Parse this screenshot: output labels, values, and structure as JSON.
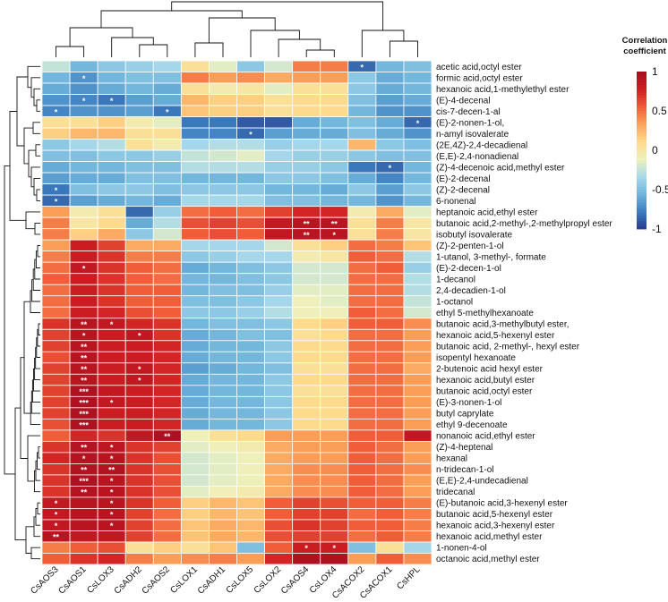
{
  "chart_data": {
    "type": "heatmap",
    "legend": {
      "title_line1": "Correlation",
      "title_line2": "coefficient",
      "ticks": [
        "1",
        "0.5",
        "0",
        "-0.5",
        "-1"
      ],
      "tick_values": [
        1,
        0.5,
        0,
        -0.5,
        -1
      ],
      "range": [
        -1,
        1
      ],
      "colors": [
        "#2b3a8c",
        "#3d7fc0",
        "#72b6dd",
        "#a9d9ea",
        "#eef1bb",
        "#fed98a",
        "#fba25a",
        "#ef5b38",
        "#cf1d22",
        "#a50f21"
      ],
      "placement": "right"
    },
    "columns": [
      "CsAOS3",
      "CsAOS1",
      "CsLOX3",
      "CsADH2",
      "CsAOS2",
      "CsLOX1",
      "CsADH1",
      "CsLOX5",
      "CsLOX2",
      "CsAOS4",
      "CsLOX4",
      "CsACOX2",
      "CsACOX1",
      "CsHPL"
    ],
    "rows": [
      "acetic acid,octyl ester",
      "formic acid,octyl ester",
      "hexanoic acid,1-methylethyl ester",
      "(E)-4-decenal",
      "cis-7-decen-1-al",
      "(E)-2-nonen-1-ol,",
      "n-amyl isovalerate",
      "(2E,4Z)-2,4-decadienal",
      "(E,E)-2,4-nonadienal",
      "(Z)-4-decenoic acid,methyl ester",
      "(E)-2-decenal",
      "(Z)-2-decenal",
      "6-nonenal",
      "heptanoic acid,ethyl ester",
      "butanoic acid,2-methyl-,2-methylpropyl ester",
      "isobutyl isovalerate",
      "(Z)-2-penten-1-ol",
      "1-utanol, 3-methyl-, formate",
      "(E)-2-decen-1-ol",
      "1-decanol",
      "2,4-decadien-1-ol",
      "1-octanol",
      "ethyl 5-methylhexanoate",
      "butanoic acid,3-methylbutyl ester,",
      "hexanoic acid,5-hexenyl ester",
      "butanoic acid, 2-methyl-, hexyl ester",
      "isopentyl hexanoate",
      "2-butenoic acid hexyl ester",
      "hexanoic acid,butyl ester",
      "butanoic acid,octyl ester",
      "(E)-3-nonen-1-ol",
      "butyl caprylate",
      "ethyl 9-decenoate",
      "nonanoic acid,ethyl ester",
      "(Z)-4-heptenal",
      "hexanal",
      "n-tridecan-1-ol",
      "(E,E)-2,4-undecadienal",
      "tridecanal",
      "(E)-butanoic acid,3-hexenyl ester",
      "butanoic acid,5-hexenyl ester",
      "hexanoic acid,3-hexenyl ester",
      "hexanoic acid,methyl ester",
      "1-nonen-4-ol",
      "octanoic acid,methyl ester"
    ],
    "values": [
      [
        -0.25,
        -0.55,
        -0.45,
        -0.4,
        -0.35,
        0.05,
        -0.15,
        -0.45,
        -0.2,
        0.45,
        0.45,
        -0.85,
        -0.55,
        -0.5
      ],
      [
        -0.55,
        -0.7,
        -0.55,
        -0.5,
        -0.5,
        0.45,
        0.35,
        0.4,
        0.3,
        0.35,
        0.35,
        -0.45,
        -0.6,
        -0.55
      ],
      [
        -0.6,
        -0.7,
        -0.6,
        -0.55,
        -0.6,
        0.05,
        -0.05,
        0.0,
        -0.15,
        0.05,
        0.05,
        -0.45,
        -0.6,
        -0.55
      ],
      [
        -0.7,
        -0.75,
        -0.8,
        -0.65,
        -0.6,
        0.25,
        0.15,
        0.15,
        0.05,
        0.1,
        0.1,
        -0.5,
        -0.65,
        -0.6
      ],
      [
        -0.75,
        -0.7,
        -0.7,
        -0.65,
        -0.8,
        0.2,
        0.15,
        0.15,
        0.05,
        0.1,
        0.1,
        -0.55,
        -0.7,
        -0.7
      ],
      [
        0.05,
        0.05,
        0.15,
        -0.05,
        -0.15,
        -0.8,
        -0.8,
        -0.9,
        -0.9,
        -0.6,
        -0.55,
        -0.5,
        -0.6,
        -0.85
      ],
      [
        0.15,
        0.25,
        0.25,
        0.05,
        0.05,
        -0.75,
        -0.75,
        -0.85,
        -0.65,
        -0.6,
        -0.6,
        -0.5,
        -0.6,
        -0.7
      ],
      [
        -0.45,
        -0.35,
        -0.3,
        0.05,
        -0.05,
        -0.35,
        -0.3,
        -0.3,
        -0.4,
        -0.35,
        -0.35,
        0.25,
        -0.45,
        -0.5
      ],
      [
        -0.5,
        -0.5,
        -0.45,
        -0.45,
        -0.4,
        -0.25,
        -0.2,
        -0.15,
        -0.35,
        -0.4,
        -0.4,
        -0.45,
        -0.5,
        -0.5
      ],
      [
        -0.6,
        -0.55,
        -0.55,
        -0.5,
        -0.5,
        -0.3,
        -0.3,
        -0.3,
        -0.4,
        -0.4,
        -0.45,
        -0.8,
        -0.85,
        -0.55
      ],
      [
        -0.65,
        -0.6,
        -0.6,
        -0.5,
        -0.5,
        -0.55,
        -0.55,
        -0.55,
        -0.45,
        -0.45,
        -0.5,
        -0.6,
        -0.75,
        -0.55
      ],
      [
        -0.8,
        -0.5,
        -0.45,
        -0.45,
        -0.5,
        -0.45,
        -0.45,
        -0.45,
        -0.55,
        -0.55,
        -0.6,
        -0.45,
        -0.65,
        -0.45
      ],
      [
        -0.85,
        -0.65,
        -0.6,
        -0.55,
        -0.6,
        -0.35,
        -0.35,
        -0.35,
        -0.5,
        -0.5,
        -0.55,
        -0.55,
        -0.7,
        -0.55
      ],
      [
        0.35,
        -0.05,
        0.05,
        -0.85,
        -0.4,
        0.5,
        0.55,
        0.5,
        0.65,
        0.75,
        0.75,
        -0.05,
        0.3,
        -0.15
      ],
      [
        0.45,
        0.0,
        0.1,
        -0.6,
        -0.3,
        0.6,
        0.65,
        0.6,
        0.85,
        0.9,
        0.9,
        0.05,
        0.45,
        0.0
      ],
      [
        0.45,
        0.15,
        0.3,
        -0.45,
        -0.2,
        0.55,
        0.6,
        0.55,
        0.85,
        0.9,
        0.9,
        0.05,
        0.45,
        0.0
      ],
      [
        0.35,
        0.8,
        0.65,
        0.3,
        0.3,
        -0.35,
        -0.35,
        -0.35,
        -0.2,
        0.05,
        0.15,
        0.5,
        0.45,
        0.2
      ],
      [
        0.45,
        0.8,
        0.7,
        0.45,
        0.45,
        -0.45,
        -0.4,
        -0.35,
        -0.35,
        -0.05,
        0.0,
        0.55,
        0.5,
        -0.3
      ],
      [
        0.5,
        0.85,
        0.7,
        0.55,
        0.5,
        -0.6,
        -0.55,
        -0.5,
        -0.45,
        -0.2,
        -0.2,
        0.5,
        0.55,
        -0.4
      ],
      [
        0.55,
        0.8,
        0.7,
        0.55,
        0.5,
        -0.55,
        -0.55,
        -0.5,
        -0.45,
        -0.2,
        -0.2,
        0.5,
        0.5,
        -0.3
      ],
      [
        0.5,
        0.8,
        0.7,
        0.55,
        0.55,
        -0.55,
        -0.5,
        -0.5,
        -0.4,
        -0.15,
        -0.15,
        0.5,
        0.5,
        -0.3
      ],
      [
        0.5,
        0.8,
        0.7,
        0.55,
        0.55,
        -0.5,
        -0.5,
        -0.45,
        -0.35,
        -0.1,
        -0.15,
        0.5,
        0.5,
        -0.25
      ],
      [
        0.5,
        0.8,
        0.75,
        0.6,
        0.55,
        -0.45,
        -0.45,
        -0.4,
        -0.3,
        -0.1,
        -0.1,
        0.55,
        0.5,
        -0.2
      ],
      [
        0.7,
        0.9,
        0.85,
        0.75,
        0.7,
        -0.55,
        -0.5,
        -0.5,
        -0.45,
        0.1,
        0.15,
        0.55,
        0.55,
        0.4
      ],
      [
        0.65,
        0.9,
        0.8,
        0.85,
        0.7,
        -0.6,
        -0.55,
        -0.5,
        -0.5,
        0.05,
        0.1,
        0.5,
        0.5,
        0.35
      ],
      [
        0.65,
        0.9,
        0.8,
        0.8,
        0.75,
        -0.6,
        -0.55,
        -0.55,
        -0.45,
        0.1,
        0.1,
        0.5,
        0.5,
        0.35
      ],
      [
        0.6,
        0.9,
        0.8,
        0.8,
        0.75,
        -0.6,
        -0.55,
        -0.55,
        -0.45,
        0.1,
        0.1,
        0.5,
        0.5,
        0.35
      ],
      [
        0.65,
        0.9,
        0.8,
        0.85,
        0.75,
        -0.65,
        -0.6,
        -0.55,
        -0.5,
        0.05,
        0.05,
        0.5,
        0.5,
        0.3
      ],
      [
        0.65,
        0.9,
        0.8,
        0.85,
        0.75,
        -0.6,
        -0.55,
        -0.55,
        -0.45,
        0.1,
        0.1,
        0.5,
        0.5,
        0.35
      ],
      [
        0.65,
        0.95,
        0.85,
        0.8,
        0.75,
        -0.6,
        -0.55,
        -0.55,
        -0.45,
        0.05,
        0.05,
        0.5,
        0.5,
        0.35
      ],
      [
        0.65,
        0.95,
        0.85,
        0.8,
        0.75,
        -0.6,
        -0.55,
        -0.55,
        -0.45,
        0.1,
        0.1,
        0.5,
        0.5,
        0.35
      ],
      [
        0.65,
        0.95,
        0.8,
        0.8,
        0.75,
        -0.6,
        -0.55,
        -0.55,
        -0.45,
        0.1,
        0.1,
        0.5,
        0.5,
        0.35
      ],
      [
        0.6,
        0.95,
        0.8,
        0.8,
        0.75,
        -0.6,
        -0.55,
        -0.55,
        -0.45,
        0.1,
        0.1,
        0.5,
        0.5,
        0.35
      ],
      [
        0.55,
        0.75,
        0.7,
        0.85,
        0.95,
        -0.1,
        0.05,
        0.1,
        0.35,
        0.35,
        0.35,
        0.55,
        0.55,
        0.85
      ],
      [
        0.7,
        0.92,
        0.88,
        0.7,
        0.65,
        -0.15,
        -0.1,
        -0.05,
        0.3,
        0.35,
        0.35,
        0.55,
        0.5,
        0.35
      ],
      [
        0.75,
        0.92,
        0.9,
        0.7,
        0.6,
        -0.2,
        -0.15,
        -0.1,
        0.3,
        0.35,
        0.35,
        0.55,
        0.5,
        0.35
      ],
      [
        0.7,
        0.93,
        0.93,
        0.7,
        0.6,
        -0.2,
        -0.15,
        -0.1,
        0.3,
        0.4,
        0.4,
        0.55,
        0.5,
        0.4
      ],
      [
        0.7,
        0.95,
        0.9,
        0.7,
        0.6,
        -0.2,
        -0.15,
        -0.1,
        0.3,
        0.4,
        0.4,
        0.55,
        0.5,
        0.35
      ],
      [
        0.7,
        0.92,
        0.9,
        0.7,
        0.6,
        -0.15,
        -0.1,
        -0.05,
        0.3,
        0.4,
        0.4,
        0.55,
        0.5,
        0.35
      ],
      [
        0.85,
        0.9,
        0.9,
        0.7,
        0.55,
        0.15,
        0.25,
        0.2,
        0.55,
        0.65,
        0.6,
        0.55,
        0.55,
        0.45
      ],
      [
        0.85,
        0.9,
        0.9,
        0.65,
        0.5,
        0.15,
        0.25,
        0.2,
        0.55,
        0.65,
        0.65,
        0.5,
        0.55,
        0.45
      ],
      [
        0.85,
        0.9,
        0.9,
        0.65,
        0.5,
        0.2,
        0.3,
        0.25,
        0.6,
        0.7,
        0.65,
        0.55,
        0.55,
        0.45
      ],
      [
        0.9,
        0.85,
        0.85,
        0.65,
        0.5,
        0.2,
        0.3,
        0.25,
        0.6,
        0.65,
        0.65,
        0.5,
        0.55,
        0.45
      ],
      [
        0.45,
        0.55,
        0.6,
        0.05,
        0.15,
        0.05,
        0.2,
        -0.5,
        0.55,
        0.8,
        0.8,
        -0.5,
        0.05,
        -0.35
      ],
      [
        0.55,
        0.7,
        0.75,
        0.45,
        0.35,
        0.4,
        0.45,
        0.35,
        0.75,
        0.95,
        0.95,
        0.35,
        0.55,
        0.4
      ]
    ],
    "significance": [
      {
        "row": 0,
        "col": 11,
        "mark": "*"
      },
      {
        "row": 1,
        "col": 1,
        "mark": "*"
      },
      {
        "row": 3,
        "col": 1,
        "mark": "*"
      },
      {
        "row": 3,
        "col": 2,
        "mark": "*"
      },
      {
        "row": 4,
        "col": 0,
        "mark": "*"
      },
      {
        "row": 4,
        "col": 4,
        "mark": "*"
      },
      {
        "row": 5,
        "col": 13,
        "mark": "*"
      },
      {
        "row": 6,
        "col": 7,
        "mark": "*"
      },
      {
        "row": 9,
        "col": 12,
        "mark": "*"
      },
      {
        "row": 11,
        "col": 0,
        "mark": "*"
      },
      {
        "row": 12,
        "col": 0,
        "mark": "*"
      },
      {
        "row": 14,
        "col": 9,
        "mark": "**"
      },
      {
        "row": 14,
        "col": 10,
        "mark": "**"
      },
      {
        "row": 15,
        "col": 9,
        "mark": "**"
      },
      {
        "row": 15,
        "col": 10,
        "mark": "*"
      },
      {
        "row": 18,
        "col": 1,
        "mark": "*"
      },
      {
        "row": 23,
        "col": 1,
        "mark": "**"
      },
      {
        "row": 23,
        "col": 2,
        "mark": "*"
      },
      {
        "row": 24,
        "col": 1,
        "mark": "*"
      },
      {
        "row": 24,
        "col": 3,
        "mark": "*"
      },
      {
        "row": 25,
        "col": 1,
        "mark": "**"
      },
      {
        "row": 26,
        "col": 1,
        "mark": "**"
      },
      {
        "row": 27,
        "col": 1,
        "mark": "**"
      },
      {
        "row": 27,
        "col": 3,
        "mark": "*"
      },
      {
        "row": 28,
        "col": 1,
        "mark": "**"
      },
      {
        "row": 28,
        "col": 3,
        "mark": "*"
      },
      {
        "row": 29,
        "col": 1,
        "mark": "***"
      },
      {
        "row": 30,
        "col": 1,
        "mark": "***"
      },
      {
        "row": 30,
        "col": 2,
        "mark": "*"
      },
      {
        "row": 31,
        "col": 1,
        "mark": "***"
      },
      {
        "row": 32,
        "col": 1,
        "mark": "***"
      },
      {
        "row": 33,
        "col": 4,
        "mark": "**"
      },
      {
        "row": 34,
        "col": 1,
        "mark": "**"
      },
      {
        "row": 34,
        "col": 2,
        "mark": "*"
      },
      {
        "row": 35,
        "col": 1,
        "mark": "*"
      },
      {
        "row": 35,
        "col": 2,
        "mark": "*"
      },
      {
        "row": 36,
        "col": 1,
        "mark": "**"
      },
      {
        "row": 36,
        "col": 2,
        "mark": "**"
      },
      {
        "row": 37,
        "col": 1,
        "mark": "***"
      },
      {
        "row": 37,
        "col": 2,
        "mark": "*"
      },
      {
        "row": 38,
        "col": 1,
        "mark": "**"
      },
      {
        "row": 38,
        "col": 2,
        "mark": "*"
      },
      {
        "row": 39,
        "col": 0,
        "mark": "*"
      },
      {
        "row": 39,
        "col": 2,
        "mark": "*"
      },
      {
        "row": 40,
        "col": 0,
        "mark": "*"
      },
      {
        "row": 40,
        "col": 2,
        "mark": "*"
      },
      {
        "row": 41,
        "col": 0,
        "mark": "*"
      },
      {
        "row": 41,
        "col": 2,
        "mark": "*"
      },
      {
        "row": 42,
        "col": 0,
        "mark": "**"
      },
      {
        "row": 43,
        "col": 9,
        "mark": "*"
      },
      {
        "row": 43,
        "col": 10,
        "mark": "*"
      }
    ]
  }
}
